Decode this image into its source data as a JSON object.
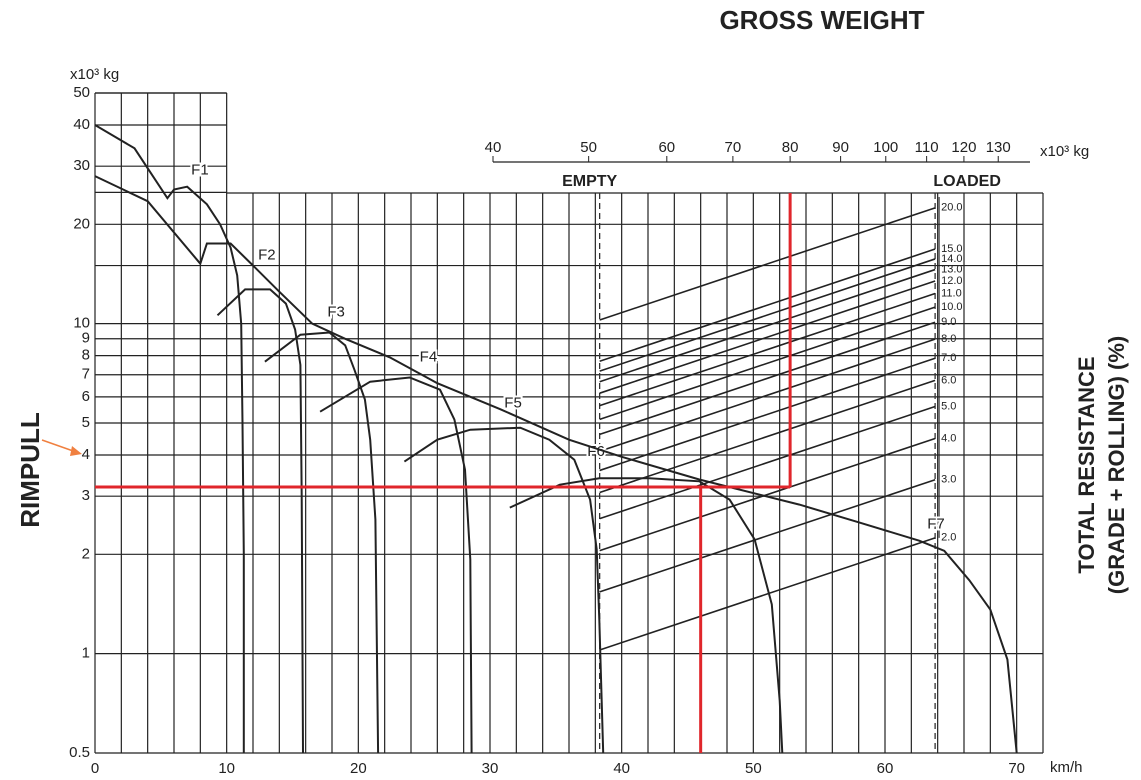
{
  "chart_data": {
    "type": "line",
    "title": "GROSS WEIGHT",
    "ylabel": "RIMPULL",
    "y_unit": "x10³ kg",
    "x_unit": "km/h",
    "right_label": [
      "TOTAL RESISTANCE",
      "(GRADE + ROLLING) (%)"
    ],
    "xlim": [
      0,
      72
    ],
    "xticks": [
      0,
      10,
      20,
      30,
      40,
      50,
      60,
      70
    ],
    "xgrid": [
      2,
      4,
      6,
      8,
      12,
      14,
      16,
      18,
      22,
      24,
      26,
      28,
      32,
      34,
      36,
      38,
      42,
      44,
      46,
      48,
      52,
      54,
      56,
      58,
      62,
      64,
      66,
      68,
      72
    ],
    "ylim": [
      0.5,
      50
    ],
    "log_y": true,
    "yticks": [
      0.5,
      1,
      2,
      3,
      4,
      5,
      6,
      7,
      8,
      9,
      10,
      20,
      30,
      40,
      50
    ],
    "ygrid": [
      15,
      25
    ],
    "upper_panel_xmax": 10,
    "weight_axis": {
      "unit": "x10³ kg",
      "lim": [
        40,
        140
      ],
      "ticks": [
        40,
        50,
        60,
        70,
        80,
        90,
        100,
        110,
        120,
        130
      ],
      "empty_label": "EMPTY",
      "empty_weight": 51.3,
      "loaded_label": "LOADED",
      "loaded_weight": 112.2
    },
    "grades": [
      {
        "value": 2,
        "label": "2.0"
      },
      {
        "value": 3,
        "label": "3.0"
      },
      {
        "value": 4,
        "label": "4.0"
      },
      {
        "value": 5,
        "label": "5.0"
      },
      {
        "value": 6,
        "label": "6.0"
      },
      {
        "value": 7,
        "label": "7.0"
      },
      {
        "value": 8,
        "label": "8.0"
      },
      {
        "value": 9,
        "label": "9.0"
      },
      {
        "value": 10,
        "label": "10.0"
      },
      {
        "value": 11,
        "label": "11.0"
      },
      {
        "value": 12,
        "label": "12.0"
      },
      {
        "value": 13,
        "label": "13.0"
      },
      {
        "value": 14,
        "label": "14.0"
      },
      {
        "value": 15,
        "label": "15.0"
      },
      {
        "value": 20,
        "label": "20.0"
      }
    ],
    "series": [
      {
        "name": "F1",
        "color": "#222222",
        "x": [
          0,
          3,
          5.5,
          6,
          7,
          8.5,
          9.5,
          10.3,
          10.8,
          11.1,
          11.2,
          11.3,
          11.3
        ],
        "values": [
          40,
          34,
          24,
          25.5,
          26,
          23,
          20,
          17,
          14,
          10,
          5,
          2,
          0.5
        ]
      },
      {
        "name": "F2",
        "color": "#222222",
        "x": [
          9.3,
          11.4,
          13.3,
          14.5,
          15.2,
          15.6,
          15.7,
          15.8
        ],
        "values": [
          10.6,
          12.7,
          12.7,
          11.5,
          9.6,
          7.5,
          3,
          0.5
        ]
      },
      {
        "name": "F3",
        "color": "#222222",
        "x": [
          12.9,
          15.6,
          17.8,
          19,
          19.7,
          20.5,
          20.9,
          21.3,
          21.5
        ],
        "values": [
          7.67,
          9.26,
          9.4,
          8.6,
          7.25,
          5.89,
          4.45,
          2.55,
          0.5
        ]
      },
      {
        "name": "F4",
        "color": "#222222",
        "x": [
          17.1,
          20.9,
          23.9,
          26.2,
          27.3,
          28.1,
          28.5,
          28.6
        ],
        "values": [
          5.41,
          6.67,
          6.87,
          6.31,
          5.12,
          3.61,
          1.93,
          0.5
        ]
      },
      {
        "name": "F5",
        "color": "#222222",
        "x": [
          23.5,
          26,
          28.5,
          32.3,
          34.5,
          36.4,
          37.6,
          38.1,
          38.3,
          38.6
        ],
        "values": [
          3.82,
          4.45,
          4.77,
          4.84,
          4.45,
          3.87,
          2.93,
          2.07,
          1.27,
          0.5
        ]
      },
      {
        "name": "F6",
        "color": "#222222",
        "x": [
          31.5,
          35.3,
          38.3,
          42.1,
          45.9,
          48.2,
          50.1,
          51.4,
          52,
          52.2
        ],
        "values": [
          2.77,
          3.25,
          3.4,
          3.4,
          3.33,
          2.93,
          2.22,
          1.41,
          0.72,
          0.5
        ]
      },
      {
        "name": "F7",
        "color": "#222222",
        "x": [
          0,
          4,
          8,
          8.5,
          10.3,
          12,
          14,
          16.5,
          19,
          22.4,
          26,
          30.8,
          36,
          40,
          45.9,
          53.5,
          58,
          62.6,
          64.5,
          66.4,
          68,
          69.3,
          70
        ],
        "values": [
          28,
          23.5,
          15.2,
          17.5,
          17.5,
          15,
          12.5,
          10,
          9,
          7.9,
          6.6,
          5.5,
          4.45,
          3.95,
          3.37,
          2.83,
          2.5,
          2.2,
          2.05,
          1.67,
          1.36,
          0.96,
          0.5
        ]
      }
    ],
    "reading": {
      "color": "#e0262b",
      "gross_weight": 80,
      "rimpull": 3.2,
      "speed": 46
    }
  }
}
